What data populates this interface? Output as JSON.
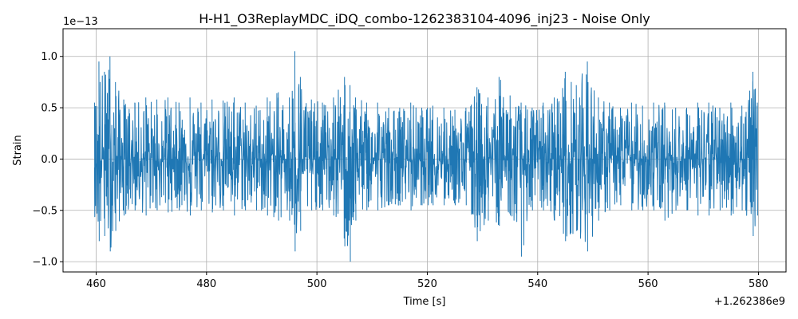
{
  "chart_data": {
    "type": "line",
    "title": "H-H1_O3ReplayMDC_iDQ_combo-1262383104-4096_inj23 - Noise Only",
    "xlabel": "Time [s]",
    "ylabel": "Strain",
    "x_offset_label": "+1.262386e9",
    "y_multiplier_label": "1e−13",
    "xlim": [
      454,
      585
    ],
    "ylim": [
      -1.1,
      1.27
    ],
    "x_ticks": [
      460,
      480,
      500,
      520,
      540,
      560,
      580
    ],
    "x_tick_labels": [
      "460",
      "480",
      "500",
      "520",
      "540",
      "560",
      "580"
    ],
    "y_ticks": [
      -1.0,
      -0.5,
      0.0,
      0.5,
      1.0
    ],
    "y_tick_labels": [
      "−1.0",
      "−0.5",
      "0.0",
      "0.5",
      "1.0"
    ],
    "grid": true,
    "series": [
      {
        "color": "#1f77b4",
        "x_range": [
          459.7,
          579.8
        ],
        "envelope": {
          "x": [
            459.7,
            460.5,
            461.5,
            462.5,
            463.5,
            465,
            467,
            469,
            471,
            473,
            475,
            477,
            479,
            481,
            483,
            485,
            487,
            489,
            491,
            493,
            495,
            496,
            497,
            499,
            501,
            503,
            505,
            506,
            507,
            509,
            511,
            513,
            515,
            517,
            519,
            521,
            523,
            525,
            527,
            529,
            531,
            533,
            535,
            537,
            539,
            541,
            543,
            545,
            547,
            549,
            551,
            553,
            555,
            557,
            559,
            561,
            563,
            565,
            567,
            569,
            571,
            573,
            575,
            577,
            579,
            579.8
          ],
          "upper": [
            0.55,
            0.95,
            0.85,
            1.0,
            0.75,
            0.58,
            0.55,
            0.6,
            0.58,
            0.6,
            0.55,
            0.6,
            0.55,
            0.58,
            0.57,
            0.6,
            0.55,
            0.52,
            0.6,
            0.65,
            0.6,
            1.05,
            0.8,
            0.58,
            0.55,
            0.6,
            0.8,
            0.72,
            0.6,
            0.55,
            0.55,
            0.5,
            0.5,
            0.55,
            0.5,
            0.52,
            0.5,
            0.48,
            0.5,
            0.7,
            0.6,
            0.8,
            0.62,
            0.55,
            0.5,
            0.55,
            0.6,
            0.85,
            0.72,
            0.95,
            0.6,
            0.55,
            0.5,
            0.55,
            0.52,
            0.55,
            0.55,
            0.5,
            0.5,
            0.55,
            0.55,
            0.5,
            0.55,
            0.52,
            0.85,
            0.55
          ],
          "lower": [
            -0.55,
            -0.8,
            -0.75,
            -0.9,
            -0.7,
            -0.55,
            -0.5,
            -0.55,
            -0.5,
            -0.52,
            -0.5,
            -0.55,
            -0.5,
            -0.52,
            -0.5,
            -0.55,
            -0.5,
            -0.5,
            -0.55,
            -0.6,
            -0.6,
            -0.9,
            -0.7,
            -0.5,
            -0.5,
            -0.55,
            -0.85,
            -1.0,
            -0.6,
            -0.5,
            -0.5,
            -0.45,
            -0.45,
            -0.5,
            -0.45,
            -0.45,
            -0.45,
            -0.45,
            -0.45,
            -0.8,
            -0.6,
            -0.65,
            -0.55,
            -0.95,
            -0.5,
            -0.5,
            -0.6,
            -0.8,
            -0.7,
            -0.9,
            -0.6,
            -0.5,
            -0.45,
            -0.5,
            -0.5,
            -0.5,
            -0.6,
            -0.5,
            -0.5,
            -0.55,
            -0.55,
            -0.5,
            -0.55,
            -0.5,
            -0.75,
            -0.55
          ]
        }
      }
    ]
  }
}
